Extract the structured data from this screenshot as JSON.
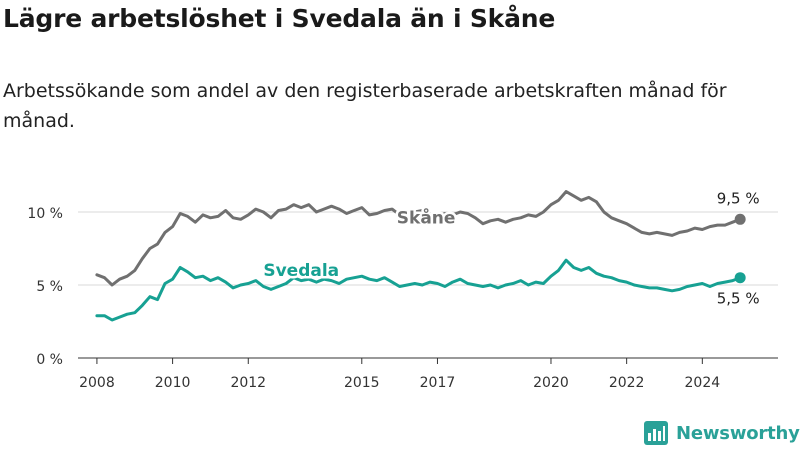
{
  "header": {
    "title": "Lägre arbetslöshet i Svedala än i Skåne",
    "subtitle": "Arbetssökande som andel av den registerbaserade arbetskraften månad för månad."
  },
  "brand": {
    "name": "Newsworthy"
  },
  "colors": {
    "skane": "#707070",
    "svedala": "#17a193",
    "grid": "#d9d9d9",
    "axis": "#333333"
  },
  "chart_data": {
    "type": "line",
    "x_unit": "year (decimal)",
    "xlim": [
      2007.5,
      2026.0
    ],
    "ylim": [
      0,
      12
    ],
    "grid": "horizontal",
    "yticks": [
      {
        "value": 0,
        "label": "0 %"
      },
      {
        "value": 5,
        "label": "5 %"
      },
      {
        "value": 10,
        "label": "10 %"
      }
    ],
    "xticks": [
      {
        "value": 2008,
        "label": "2008"
      },
      {
        "value": 2010,
        "label": "2010"
      },
      {
        "value": 2012,
        "label": "2012"
      },
      {
        "value": 2015,
        "label": "2015"
      },
      {
        "value": 2017,
        "label": "2017"
      },
      {
        "value": 2020,
        "label": "2020"
      },
      {
        "value": 2022,
        "label": "2022"
      },
      {
        "value": 2024,
        "label": "2024"
      }
    ],
    "series": [
      {
        "name": "Skåne",
        "color": "#707070",
        "label_at": [
          2016.7,
          9.2
        ],
        "end_label": "9,5 %",
        "points": [
          [
            2008.0,
            5.7
          ],
          [
            2008.2,
            5.5
          ],
          [
            2008.4,
            5.0
          ],
          [
            2008.6,
            5.4
          ],
          [
            2008.8,
            5.6
          ],
          [
            2009.0,
            6.0
          ],
          [
            2009.2,
            6.8
          ],
          [
            2009.4,
            7.5
          ],
          [
            2009.6,
            7.8
          ],
          [
            2009.8,
            8.6
          ],
          [
            2010.0,
            9.0
          ],
          [
            2010.2,
            9.9
          ],
          [
            2010.4,
            9.7
          ],
          [
            2010.6,
            9.3
          ],
          [
            2010.8,
            9.8
          ],
          [
            2011.0,
            9.6
          ],
          [
            2011.2,
            9.7
          ],
          [
            2011.4,
            10.1
          ],
          [
            2011.6,
            9.6
          ],
          [
            2011.8,
            9.5
          ],
          [
            2012.0,
            9.8
          ],
          [
            2012.2,
            10.2
          ],
          [
            2012.4,
            10.0
          ],
          [
            2012.6,
            9.6
          ],
          [
            2012.8,
            10.1
          ],
          [
            2013.0,
            10.2
          ],
          [
            2013.2,
            10.5
          ],
          [
            2013.4,
            10.3
          ],
          [
            2013.6,
            10.5
          ],
          [
            2013.8,
            10.0
          ],
          [
            2014.0,
            10.2
          ],
          [
            2014.2,
            10.4
          ],
          [
            2014.4,
            10.2
          ],
          [
            2014.6,
            9.9
          ],
          [
            2014.8,
            10.1
          ],
          [
            2015.0,
            10.3
          ],
          [
            2015.2,
            9.8
          ],
          [
            2015.4,
            9.9
          ],
          [
            2015.6,
            10.1
          ],
          [
            2015.8,
            10.2
          ],
          [
            2016.0,
            9.8
          ],
          [
            2016.2,
            9.7
          ],
          [
            2016.4,
            10.0
          ],
          [
            2016.6,
            10.1
          ],
          [
            2016.8,
            9.9
          ],
          [
            2017.0,
            9.7
          ],
          [
            2017.2,
            9.9
          ],
          [
            2017.4,
            9.8
          ],
          [
            2017.6,
            10.0
          ],
          [
            2017.8,
            9.9
          ],
          [
            2018.0,
            9.6
          ],
          [
            2018.2,
            9.2
          ],
          [
            2018.4,
            9.4
          ],
          [
            2018.6,
            9.5
          ],
          [
            2018.8,
            9.3
          ],
          [
            2019.0,
            9.5
          ],
          [
            2019.2,
            9.6
          ],
          [
            2019.4,
            9.8
          ],
          [
            2019.6,
            9.7
          ],
          [
            2019.8,
            10.0
          ],
          [
            2020.0,
            10.5
          ],
          [
            2020.2,
            10.8
          ],
          [
            2020.4,
            11.4
          ],
          [
            2020.6,
            11.1
          ],
          [
            2020.8,
            10.8
          ],
          [
            2021.0,
            11.0
          ],
          [
            2021.2,
            10.7
          ],
          [
            2021.4,
            10.0
          ],
          [
            2021.6,
            9.6
          ],
          [
            2021.8,
            9.4
          ],
          [
            2022.0,
            9.2
          ],
          [
            2022.2,
            8.9
          ],
          [
            2022.4,
            8.6
          ],
          [
            2022.6,
            8.5
          ],
          [
            2022.8,
            8.6
          ],
          [
            2023.0,
            8.5
          ],
          [
            2023.2,
            8.4
          ],
          [
            2023.4,
            8.6
          ],
          [
            2023.6,
            8.7
          ],
          [
            2023.8,
            8.9
          ],
          [
            2024.0,
            8.8
          ],
          [
            2024.2,
            9.0
          ],
          [
            2024.4,
            9.1
          ],
          [
            2024.6,
            9.1
          ],
          [
            2024.8,
            9.3
          ],
          [
            2025.0,
            9.5
          ]
        ]
      },
      {
        "name": "Svedala",
        "color": "#17a193",
        "label_at": [
          2013.4,
          5.6
        ],
        "end_label": "5,5 %",
        "points": [
          [
            2008.0,
            2.9
          ],
          [
            2008.2,
            2.9
          ],
          [
            2008.4,
            2.6
          ],
          [
            2008.6,
            2.8
          ],
          [
            2008.8,
            3.0
          ],
          [
            2009.0,
            3.1
          ],
          [
            2009.2,
            3.6
          ],
          [
            2009.4,
            4.2
          ],
          [
            2009.6,
            4.0
          ],
          [
            2009.8,
            5.1
          ],
          [
            2010.0,
            5.4
          ],
          [
            2010.2,
            6.2
          ],
          [
            2010.4,
            5.9
          ],
          [
            2010.6,
            5.5
          ],
          [
            2010.8,
            5.6
          ],
          [
            2011.0,
            5.3
          ],
          [
            2011.2,
            5.5
          ],
          [
            2011.4,
            5.2
          ],
          [
            2011.6,
            4.8
          ],
          [
            2011.8,
            5.0
          ],
          [
            2012.0,
            5.1
          ],
          [
            2012.2,
            5.3
          ],
          [
            2012.4,
            4.9
          ],
          [
            2012.6,
            4.7
          ],
          [
            2012.8,
            4.9
          ],
          [
            2013.0,
            5.1
          ],
          [
            2013.2,
            5.5
          ],
          [
            2013.4,
            5.3
          ],
          [
            2013.6,
            5.4
          ],
          [
            2013.8,
            5.2
          ],
          [
            2014.0,
            5.4
          ],
          [
            2014.2,
            5.3
          ],
          [
            2014.4,
            5.1
          ],
          [
            2014.6,
            5.4
          ],
          [
            2014.8,
            5.5
          ],
          [
            2015.0,
            5.6
          ],
          [
            2015.2,
            5.4
          ],
          [
            2015.4,
            5.3
          ],
          [
            2015.6,
            5.5
          ],
          [
            2015.8,
            5.2
          ],
          [
            2016.0,
            4.9
          ],
          [
            2016.2,
            5.0
          ],
          [
            2016.4,
            5.1
          ],
          [
            2016.6,
            5.0
          ],
          [
            2016.8,
            5.2
          ],
          [
            2017.0,
            5.1
          ],
          [
            2017.2,
            4.9
          ],
          [
            2017.4,
            5.2
          ],
          [
            2017.6,
            5.4
          ],
          [
            2017.8,
            5.1
          ],
          [
            2018.0,
            5.0
          ],
          [
            2018.2,
            4.9
          ],
          [
            2018.4,
            5.0
          ],
          [
            2018.6,
            4.8
          ],
          [
            2018.8,
            5.0
          ],
          [
            2019.0,
            5.1
          ],
          [
            2019.2,
            5.3
          ],
          [
            2019.4,
            5.0
          ],
          [
            2019.6,
            5.2
          ],
          [
            2019.8,
            5.1
          ],
          [
            2020.0,
            5.6
          ],
          [
            2020.2,
            6.0
          ],
          [
            2020.4,
            6.7
          ],
          [
            2020.6,
            6.2
          ],
          [
            2020.8,
            6.0
          ],
          [
            2021.0,
            6.2
          ],
          [
            2021.2,
            5.8
          ],
          [
            2021.4,
            5.6
          ],
          [
            2021.6,
            5.5
          ],
          [
            2021.8,
            5.3
          ],
          [
            2022.0,
            5.2
          ],
          [
            2022.2,
            5.0
          ],
          [
            2022.4,
            4.9
          ],
          [
            2022.6,
            4.8
          ],
          [
            2022.8,
            4.8
          ],
          [
            2023.0,
            4.7
          ],
          [
            2023.2,
            4.6
          ],
          [
            2023.4,
            4.7
          ],
          [
            2023.6,
            4.9
          ],
          [
            2023.8,
            5.0
          ],
          [
            2024.0,
            5.1
          ],
          [
            2024.2,
            4.9
          ],
          [
            2024.4,
            5.1
          ],
          [
            2024.6,
            5.2
          ],
          [
            2024.8,
            5.3
          ],
          [
            2025.0,
            5.5
          ]
        ]
      }
    ]
  }
}
